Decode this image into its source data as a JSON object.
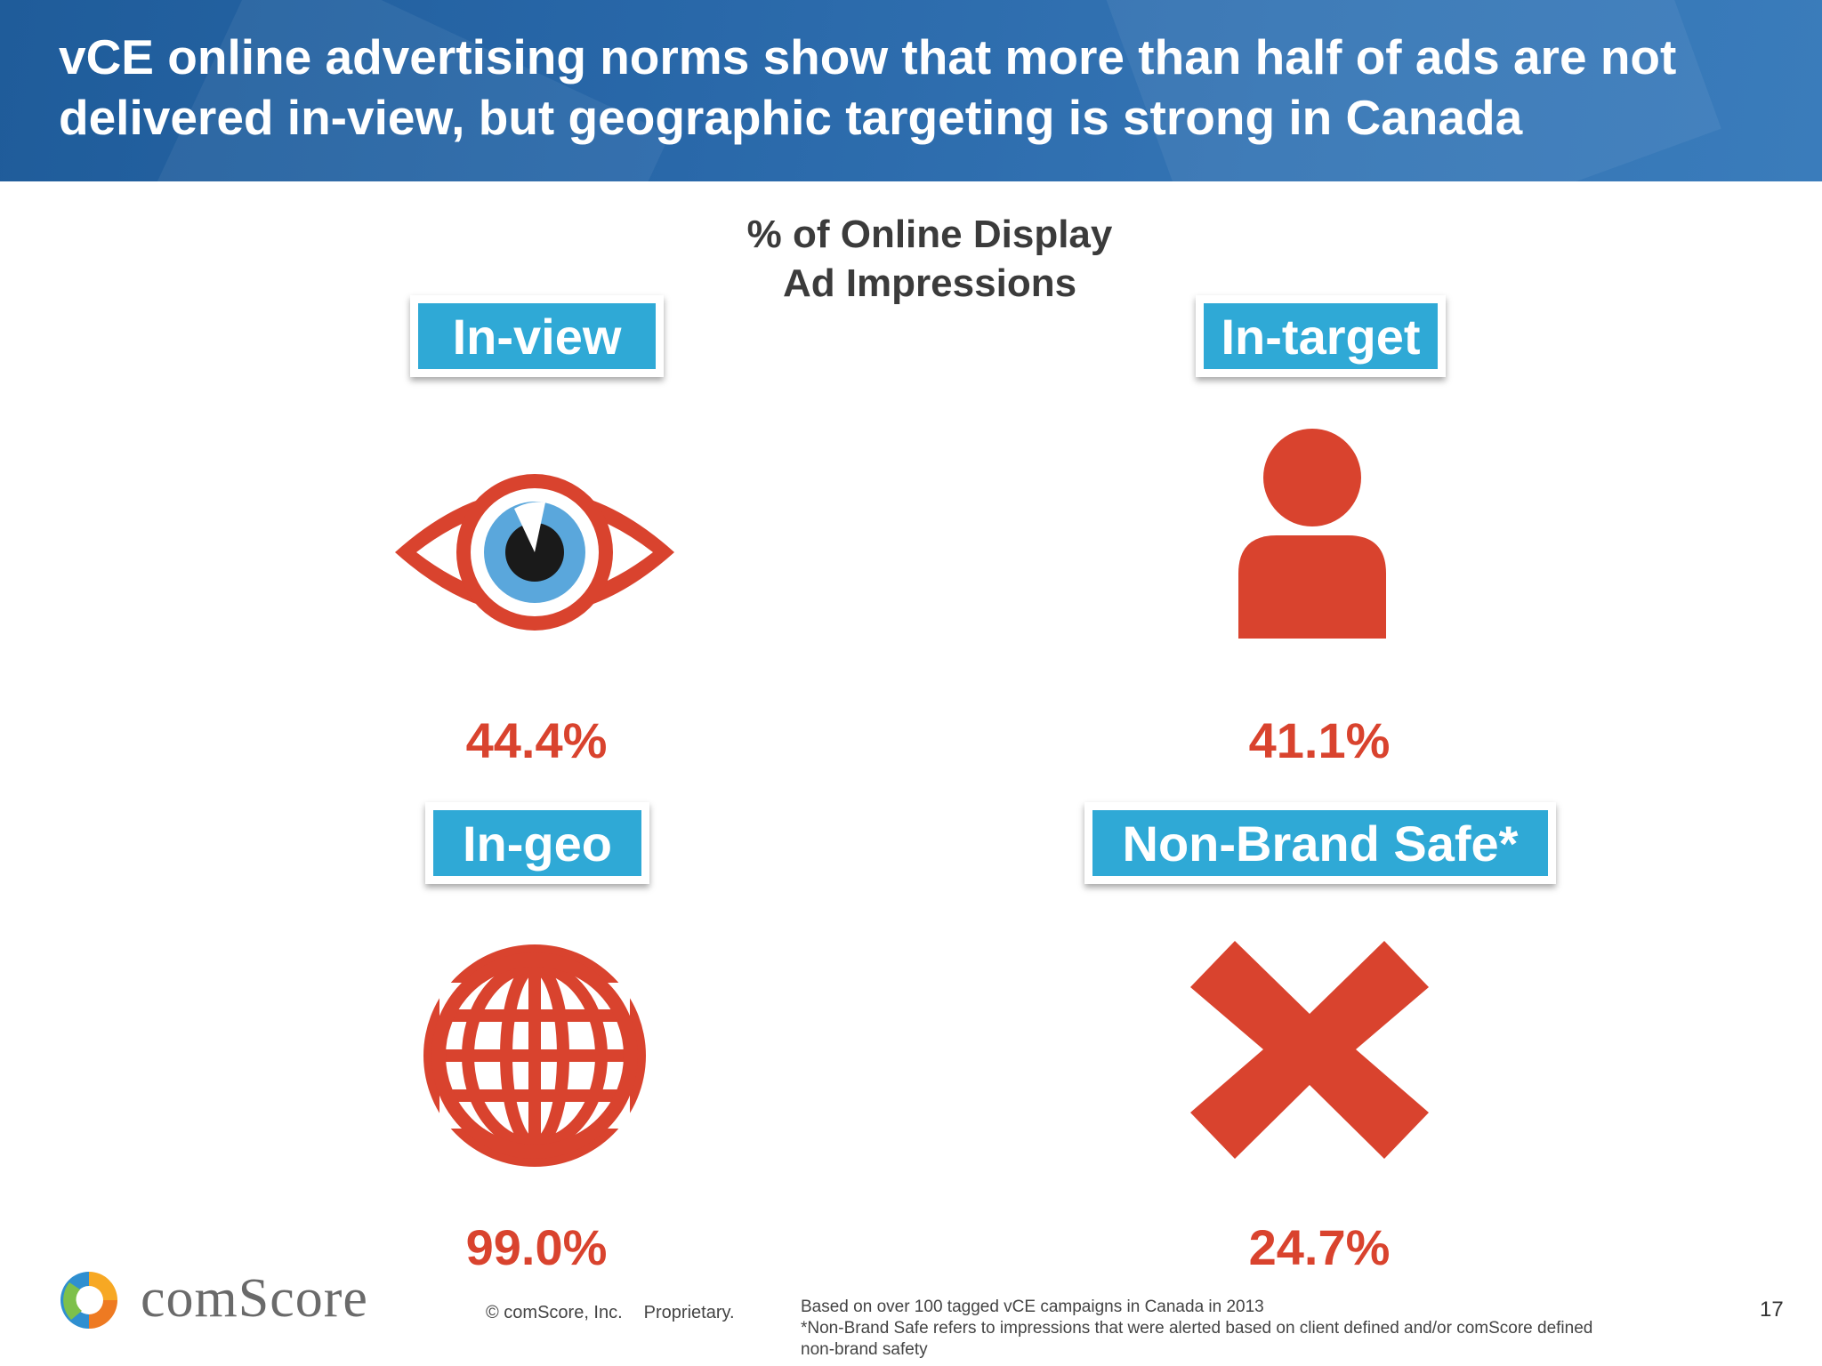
{
  "slide": {
    "title": "vCE online advertising norms show that more than half of ads are not delivered in-view, but geographic targeting is strong in Canada",
    "subtitle_line1": "% of Online Display",
    "subtitle_line2": "Ad Impressions"
  },
  "metrics": [
    {
      "label": "In-view",
      "value": "44.4%",
      "icon": "eye-icon"
    },
    {
      "label": "In-target",
      "value": "41.1%",
      "icon": "person-icon"
    },
    {
      "label": "In-geo",
      "value": "99.0%",
      "icon": "globe-icon"
    },
    {
      "label": "Non-Brand Safe*",
      "value": "24.7%",
      "icon": "x-icon"
    }
  ],
  "footer": {
    "brand": "comScore",
    "copyright": "© comScore, Inc.",
    "proprietary": "Proprietary.",
    "note_line1": "Based on over 100 tagged vCE campaigns in Canada in 2013",
    "note_line2": "*Non-Brand Safe refers to impressions that were alerted based on client defined and/or comScore defined",
    "note_line3": "non-brand safety",
    "page_number": "17"
  },
  "colors": {
    "header_blue": "#2867a8",
    "label_blue": "#2fa9d6",
    "accent_red": "#d9432e",
    "iris_blue": "#5aa7dc"
  }
}
